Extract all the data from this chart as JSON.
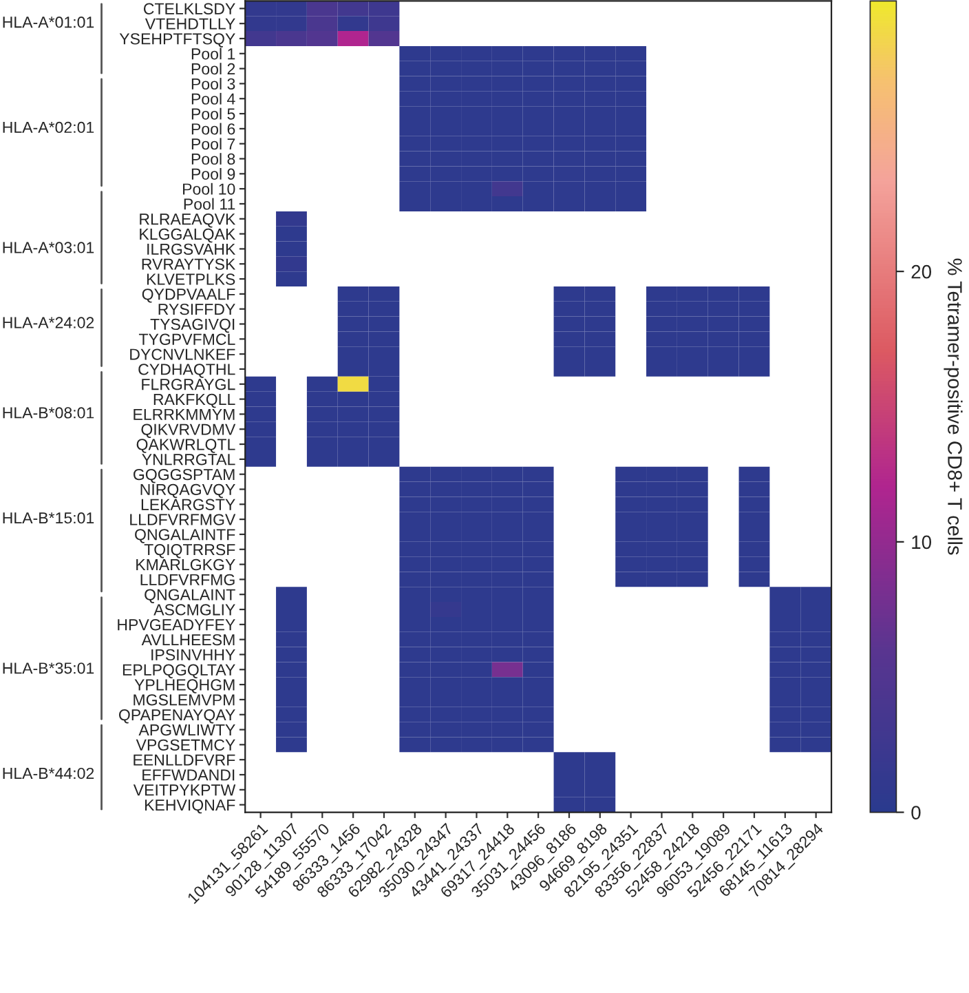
{
  "chart_data": {
    "type": "heatmap",
    "categories": [
      "104131_58261",
      "90128_11307",
      "54189_55570",
      "86333_1456",
      "86333_17042",
      "62982_24328",
      "35030_24347",
      "43441_24337",
      "69317_24418",
      "35031_24456",
      "43096_8186",
      "94669_8198",
      "82195_24351",
      "83356_22837",
      "52458_24218",
      "96053_19089",
      "52456_22171",
      "68145_11613",
      "70814_28294"
    ],
    "y_categories": [
      "CTELKLSDY",
      "VTEHDTLLY",
      "YSEHPTFTSQY",
      "Pool 1",
      "Pool 2",
      "Pool 3",
      "Pool 4",
      "Pool 5",
      "Pool 6",
      "Pool 7",
      "Pool 8",
      "Pool 9",
      "Pool 10",
      "Pool 11",
      "RLRAEAQVK",
      "KLGGALQAK",
      "ILRGSVAHK",
      "RVRAYTYSK",
      "KLVETPLKS",
      "QYDPVAALF",
      "RYSIFFDY",
      "TYSAGIVQI",
      "TYGPVFMCL",
      "DYCNVLNKEF",
      "CYDHAQTHL",
      "FLRGRAYGL",
      "RAKFKQLL",
      "ELRRKMMYM",
      "QIKVRVDMV",
      "QAKWRLQTL",
      "YNLRRGTAL",
      "GQGGSPTAM",
      "NIRQAGVQY",
      "LEKARGSTY",
      "LLDFVRFMGV",
      "QNGALAINTF",
      "TQIQTRRSF",
      "KMARLGKGY",
      "LLDFVRFMG",
      "QNGALAINT",
      "ASCMGLIY",
      "HPVGEADYFEY",
      "AVLLHEESM",
      "IPSINVHHY",
      "EPLPQGQLTAY",
      "YPLHEQHGM",
      "MGSLEMVPM",
      "QPAPENAYQAY",
      "APGWLIWTY",
      "VPGSETMCY",
      "EENLLDFVRF",
      "EFFWDANDI",
      "VEITPYKPTW",
      "KEHVIQNAF"
    ],
    "cells": [
      [
        1,
        1,
        4,
        3,
        2.5,
        null,
        null,
        null,
        null,
        null,
        null,
        null,
        null,
        null,
        null,
        null,
        null,
        null,
        null
      ],
      [
        1,
        1,
        4,
        1,
        2.5,
        null,
        null,
        null,
        null,
        null,
        null,
        null,
        null,
        null,
        null,
        null,
        null,
        null,
        null
      ],
      [
        3,
        4,
        5,
        12,
        5,
        null,
        null,
        null,
        null,
        null,
        null,
        null,
        null,
        null,
        null,
        null,
        null,
        null,
        null
      ],
      [
        null,
        null,
        null,
        null,
        null,
        0.5,
        0.5,
        0.5,
        0.5,
        0.5,
        0.5,
        0.5,
        0.5,
        null,
        null,
        null,
        null,
        null,
        null
      ],
      [
        null,
        null,
        null,
        null,
        null,
        0.5,
        0.5,
        0.5,
        0.5,
        0.5,
        0.5,
        0.5,
        0.5,
        null,
        null,
        null,
        null,
        null,
        null
      ],
      [
        null,
        null,
        null,
        null,
        null,
        0.5,
        0.5,
        0.5,
        0.5,
        0.5,
        0.5,
        0.5,
        0.5,
        null,
        null,
        null,
        null,
        null,
        null
      ],
      [
        null,
        null,
        null,
        null,
        null,
        0.5,
        0.5,
        0.5,
        0.5,
        0.5,
        0.5,
        0.5,
        0.5,
        null,
        null,
        null,
        null,
        null,
        null
      ],
      [
        null,
        null,
        null,
        null,
        null,
        0.5,
        0.5,
        0.5,
        0.5,
        0.5,
        0.5,
        0.5,
        0.5,
        null,
        null,
        null,
        null,
        null,
        null
      ],
      [
        null,
        null,
        null,
        null,
        null,
        0.5,
        0.5,
        0.5,
        0.5,
        0.5,
        0.5,
        0.5,
        0.5,
        null,
        null,
        null,
        null,
        null,
        null
      ],
      [
        null,
        null,
        null,
        null,
        null,
        0.5,
        0.5,
        0.5,
        0.5,
        0.5,
        0.5,
        0.5,
        0.5,
        null,
        null,
        null,
        null,
        null,
        null
      ],
      [
        null,
        null,
        null,
        null,
        null,
        0.5,
        0.5,
        0.5,
        0.5,
        0.5,
        0.5,
        0.5,
        0.5,
        null,
        null,
        null,
        null,
        null,
        null
      ],
      [
        null,
        null,
        null,
        null,
        null,
        0.5,
        0.5,
        0.5,
        0.5,
        0.5,
        0.5,
        0.5,
        0.5,
        null,
        null,
        null,
        null,
        null,
        null
      ],
      [
        null,
        null,
        null,
        null,
        null,
        0.5,
        0.5,
        0.5,
        3,
        0.5,
        0.5,
        0.5,
        0.5,
        null,
        null,
        null,
        null,
        null,
        null
      ],
      [
        null,
        null,
        null,
        null,
        null,
        0.5,
        0.5,
        0.5,
        0.5,
        0.5,
        0.5,
        0.5,
        0.5,
        null,
        null,
        null,
        null,
        null,
        null
      ],
      [
        null,
        1,
        null,
        null,
        null,
        null,
        null,
        null,
        null,
        null,
        null,
        null,
        null,
        null,
        null,
        null,
        null,
        null,
        null
      ],
      [
        null,
        0.5,
        null,
        null,
        null,
        null,
        null,
        null,
        null,
        null,
        null,
        null,
        null,
        null,
        null,
        null,
        null,
        null,
        null
      ],
      [
        null,
        0.5,
        null,
        null,
        null,
        null,
        null,
        null,
        null,
        null,
        null,
        null,
        null,
        null,
        null,
        null,
        null,
        null,
        null
      ],
      [
        null,
        1,
        null,
        null,
        null,
        null,
        null,
        null,
        null,
        null,
        null,
        null,
        null,
        null,
        null,
        null,
        null,
        null,
        null
      ],
      [
        null,
        0.5,
        null,
        null,
        null,
        null,
        null,
        null,
        null,
        null,
        null,
        null,
        null,
        null,
        null,
        null,
        null,
        null,
        null
      ],
      [
        null,
        null,
        null,
        0.5,
        0.5,
        null,
        null,
        null,
        null,
        null,
        0.5,
        0.5,
        null,
        0.5,
        0.5,
        0.5,
        0.5,
        null,
        null
      ],
      [
        null,
        null,
        null,
        0.5,
        0.5,
        null,
        null,
        null,
        null,
        null,
        0.5,
        0.5,
        null,
        0.5,
        0.5,
        0.5,
        0.5,
        null,
        null
      ],
      [
        null,
        null,
        null,
        0.5,
        0.5,
        null,
        null,
        null,
        null,
        null,
        0.5,
        0.5,
        null,
        0.5,
        0.5,
        0.5,
        0.5,
        null,
        null
      ],
      [
        null,
        null,
        null,
        0.5,
        0.5,
        null,
        null,
        null,
        null,
        null,
        0.5,
        0.5,
        null,
        0.5,
        0.5,
        0.5,
        0.5,
        null,
        null
      ],
      [
        null,
        null,
        null,
        0.5,
        0.5,
        null,
        null,
        null,
        null,
        null,
        0.5,
        0.5,
        null,
        0.5,
        0.5,
        0.5,
        0.5,
        null,
        null
      ],
      [
        null,
        null,
        null,
        0.5,
        0.5,
        null,
        null,
        null,
        null,
        null,
        0.5,
        0.5,
        null,
        0.5,
        0.5,
        0.5,
        0.5,
        null,
        null
      ],
      [
        0.5,
        null,
        0.5,
        29,
        0.5,
        null,
        null,
        null,
        null,
        null,
        null,
        null,
        null,
        null,
        null,
        null,
        null,
        null,
        null
      ],
      [
        0.5,
        null,
        0.5,
        0.5,
        0.5,
        null,
        null,
        null,
        null,
        null,
        null,
        null,
        null,
        null,
        null,
        null,
        null,
        null,
        null
      ],
      [
        0.5,
        null,
        0.5,
        0.5,
        0.5,
        null,
        null,
        null,
        null,
        null,
        null,
        null,
        null,
        null,
        null,
        null,
        null,
        null,
        null
      ],
      [
        0.5,
        null,
        0.5,
        0.5,
        0.5,
        null,
        null,
        null,
        null,
        null,
        null,
        null,
        null,
        null,
        null,
        null,
        null,
        null,
        null
      ],
      [
        0.5,
        null,
        0.5,
        0.5,
        0.5,
        null,
        null,
        null,
        null,
        null,
        null,
        null,
        null,
        null,
        null,
        null,
        null,
        null,
        null
      ],
      [
        0.5,
        null,
        0.5,
        0.5,
        0.5,
        null,
        null,
        null,
        null,
        null,
        null,
        null,
        null,
        null,
        null,
        null,
        null,
        null,
        null
      ],
      [
        null,
        null,
        null,
        null,
        null,
        0.5,
        0.5,
        0.5,
        0.5,
        0.5,
        null,
        null,
        0.5,
        0.5,
        0.5,
        null,
        0.5,
        null,
        null
      ],
      [
        null,
        null,
        null,
        null,
        null,
        0.5,
        0.5,
        0.5,
        0.5,
        0.5,
        null,
        null,
        0.5,
        0.5,
        0.5,
        null,
        0.5,
        null,
        null
      ],
      [
        null,
        null,
        null,
        null,
        null,
        0.5,
        0.5,
        0.5,
        0.5,
        0.5,
        null,
        null,
        0.5,
        0.5,
        0.5,
        null,
        0.5,
        null,
        null
      ],
      [
        null,
        null,
        null,
        null,
        null,
        0.5,
        0.5,
        0.5,
        0.5,
        0.5,
        null,
        null,
        0.5,
        0.5,
        0.5,
        null,
        0.5,
        null,
        null
      ],
      [
        null,
        null,
        null,
        null,
        null,
        0.5,
        0.5,
        0.5,
        0.5,
        0.5,
        null,
        null,
        0.5,
        0.5,
        0.5,
        null,
        0.5,
        null,
        null
      ],
      [
        null,
        null,
        null,
        null,
        null,
        0.5,
        0.5,
        0.5,
        0.5,
        0.5,
        null,
        null,
        0.5,
        0.5,
        0.5,
        null,
        0.5,
        null,
        null
      ],
      [
        null,
        null,
        null,
        null,
        null,
        0.5,
        0.5,
        0.5,
        0.5,
        0.5,
        null,
        null,
        0.5,
        0.5,
        0.5,
        null,
        0.5,
        null,
        null
      ],
      [
        null,
        null,
        null,
        null,
        null,
        0.5,
        0.5,
        0.5,
        0.5,
        0.5,
        null,
        null,
        0.5,
        0.5,
        0.5,
        null,
        0.5,
        null,
        null
      ],
      [
        null,
        0.5,
        null,
        null,
        null,
        0.5,
        0.5,
        0.5,
        0.5,
        0.5,
        null,
        null,
        null,
        null,
        null,
        null,
        null,
        0.5,
        0.5
      ],
      [
        null,
        0.5,
        null,
        null,
        null,
        0.5,
        1.5,
        0.5,
        0.5,
        0.5,
        null,
        null,
        null,
        null,
        null,
        null,
        null,
        0.5,
        0.5
      ],
      [
        null,
        0.5,
        null,
        null,
        null,
        0.5,
        0.5,
        0.5,
        0.5,
        0.5,
        null,
        null,
        null,
        null,
        null,
        null,
        null,
        0.5,
        0.5
      ],
      [
        null,
        0.5,
        null,
        null,
        null,
        0.5,
        0.5,
        0.5,
        0.5,
        0.5,
        null,
        null,
        null,
        null,
        null,
        null,
        null,
        0.5,
        0.5
      ],
      [
        null,
        0.5,
        null,
        null,
        null,
        0.5,
        0.5,
        0.5,
        0.5,
        0.5,
        null,
        null,
        null,
        null,
        null,
        null,
        null,
        0.5,
        0.5
      ],
      [
        null,
        0.5,
        null,
        null,
        null,
        0.5,
        0.5,
        0.5,
        8,
        0.5,
        null,
        null,
        null,
        null,
        null,
        null,
        null,
        0.5,
        0.5
      ],
      [
        null,
        0.5,
        null,
        null,
        null,
        0.5,
        0.5,
        0.5,
        0.5,
        0.5,
        null,
        null,
        null,
        null,
        null,
        null,
        null,
        0.5,
        0.5
      ],
      [
        null,
        0.5,
        null,
        null,
        null,
        0.5,
        0.5,
        0.5,
        0.5,
        0.5,
        null,
        null,
        null,
        null,
        null,
        null,
        null,
        0.5,
        0.5
      ],
      [
        null,
        0.5,
        null,
        null,
        null,
        0.5,
        0.5,
        0.5,
        0.5,
        0.5,
        null,
        null,
        null,
        null,
        null,
        null,
        null,
        0.5,
        0.5
      ],
      [
        null,
        0.5,
        null,
        null,
        null,
        0.5,
        0.5,
        0.5,
        0.5,
        0.5,
        null,
        null,
        null,
        null,
        null,
        null,
        null,
        0.5,
        0.5
      ],
      [
        null,
        0.5,
        null,
        null,
        null,
        0.5,
        0.5,
        0.5,
        0.5,
        0.5,
        null,
        null,
        null,
        null,
        null,
        null,
        null,
        0.5,
        0.5
      ],
      [
        null,
        null,
        null,
        null,
        null,
        null,
        null,
        null,
        null,
        null,
        0.5,
        0.5,
        null,
        null,
        null,
        null,
        null,
        null,
        null
      ],
      [
        null,
        null,
        null,
        null,
        null,
        null,
        null,
        null,
        null,
        null,
        0.5,
        0.5,
        null,
        null,
        null,
        null,
        null,
        null,
        null
      ],
      [
        null,
        null,
        null,
        null,
        null,
        null,
        null,
        null,
        null,
        null,
        0.5,
        0.5,
        null,
        null,
        null,
        null,
        null,
        null,
        null
      ],
      [
        null,
        null,
        null,
        null,
        null,
        null,
        null,
        null,
        null,
        null,
        0.5,
        0.5,
        null,
        null,
        null,
        null,
        null,
        null,
        null
      ]
    ],
    "clim": [
      0,
      30
    ],
    "cticks": [
      0,
      10,
      20
    ],
    "clabel": "% Tetramer-positive CD8+ T cells",
    "y2_categories": [
      null,
      "HLA-A*01:01",
      null,
      null,
      null,
      null,
      null,
      null,
      "HLA-A*02:01",
      null,
      null,
      null,
      null,
      null,
      null,
      null,
      "HLA-A*03:01",
      null,
      null,
      null,
      null,
      "HLA-A*24:02",
      null,
      null,
      null,
      null,
      null,
      "HLA-B*08:01",
      null,
      null,
      null,
      null,
      null,
      null,
      "HLA-B*15:01",
      null,
      null,
      null,
      null,
      null,
      null,
      null,
      null,
      null,
      "HLA-B*35:01",
      null,
      null,
      null,
      null,
      null,
      null,
      "HLA-B*44:02",
      null,
      null
    ]
  }
}
